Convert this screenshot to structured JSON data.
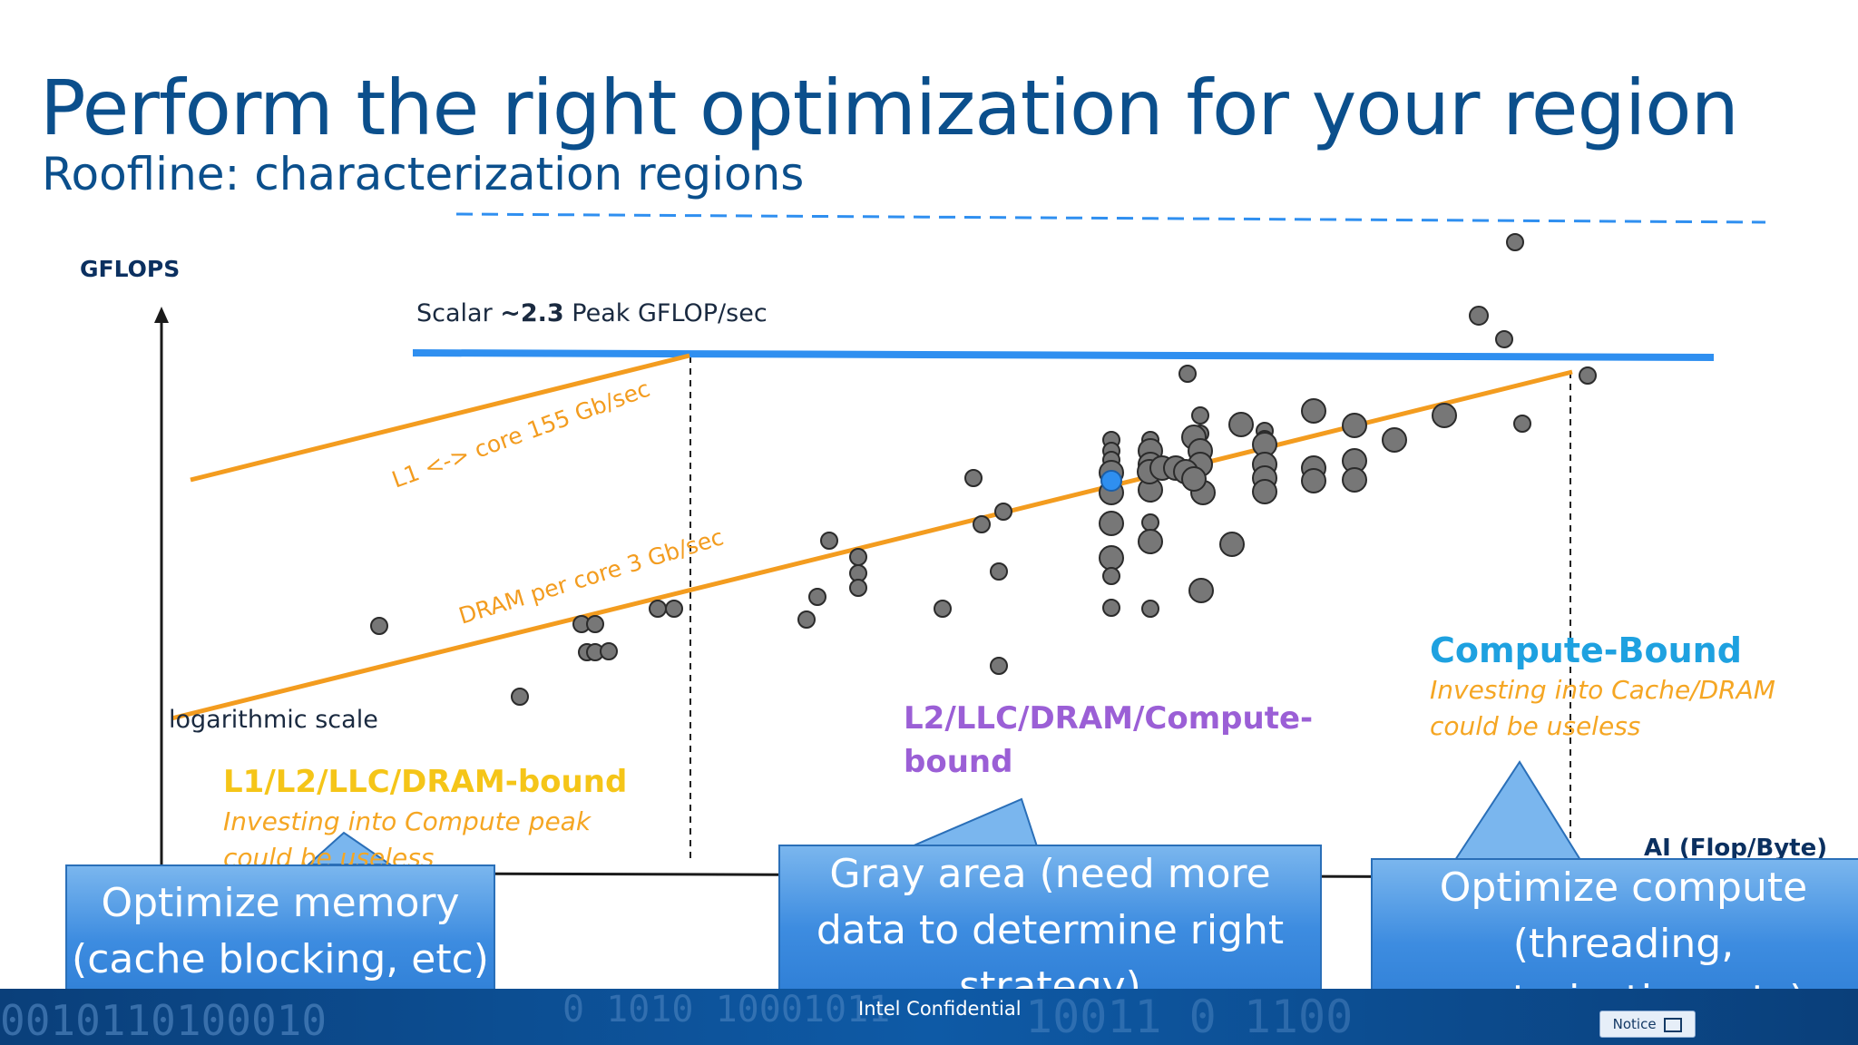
{
  "slide": {
    "title": "Perform the right optimization for your region",
    "subtitle": "Roofline: characterization regions"
  },
  "roofline": {
    "y_axis_label": "GFLOPS",
    "x_axis_label": "AI (Flop/Byte)",
    "scale_note": "logarithmic scale",
    "peak_label_prefix": "Scalar ",
    "peak_label_value": "~2.3",
    "peak_label_suffix": " Peak GFLOP/sec",
    "l1_roof_label": "L1 <-> core 155 Gb/sec",
    "dram_roof_label": "DRAM per core 3 Gb/sec",
    "colors": {
      "peak_roof": "#2f8ff0",
      "bandwidth_roofs": "#f39c1f",
      "points": "#777777",
      "highlight_point": "#2f8ff0",
      "axes": "#1a1a1a"
    }
  },
  "regions": {
    "memory_title": "L1/L2/LLC/DRAM-bound",
    "memory_note": "Investing into Compute peak could be useless",
    "mixed_title": "L2/LLC/DRAM/Compute-bound",
    "compute_title": "Compute-Bound",
    "compute_note": "Investing into Cache/DRAM could be useless"
  },
  "callouts": {
    "memory": "Optimize memory (cache blocking, etc)",
    "gray": "Gray area (need more data to determine right strategy)",
    "compute": "Optimize compute (threading, vectorization, etc)"
  },
  "footer": {
    "confidential": "Intel Confidential",
    "notice_label": "Notice",
    "notice_icon": "book-icon"
  }
}
